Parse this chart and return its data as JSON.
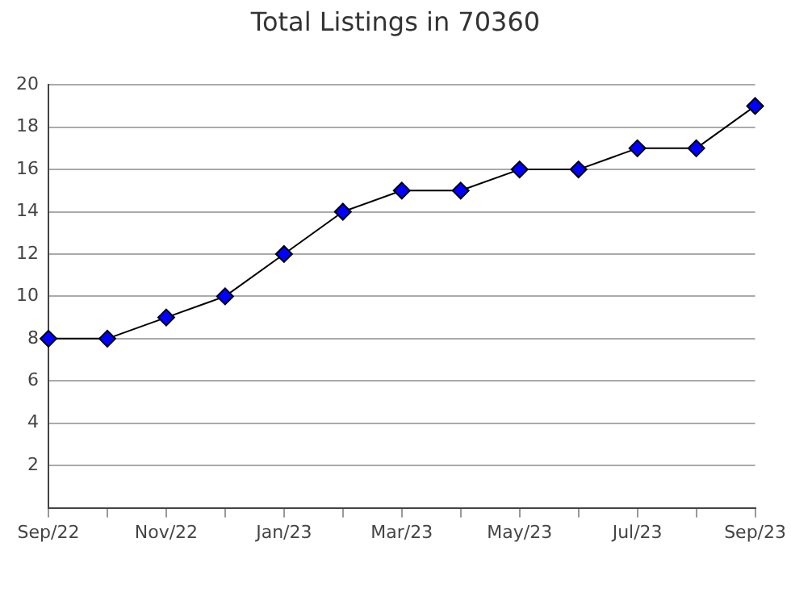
{
  "chart_data": {
    "type": "line",
    "title": "Total Listings in 70360",
    "categories": [
      "Sep/22",
      null,
      "Nov/22",
      null,
      "Jan/23",
      null,
      "Mar/23",
      null,
      "May/23",
      null,
      "Jul/23",
      null,
      "Sep/23"
    ],
    "series": [
      {
        "color": "#0000ff",
        "values": [
          8,
          8,
          9,
          10,
          12,
          14,
          15,
          15,
          16,
          16,
          17,
          17,
          19
        ]
      }
    ],
    "ylim": [
      0,
      20
    ],
    "yticks": [
      2,
      4,
      6,
      8,
      10,
      12,
      14,
      16,
      18,
      20
    ],
    "grid": "y",
    "legend": false,
    "marker": "diamond",
    "line_style": "solid"
  }
}
